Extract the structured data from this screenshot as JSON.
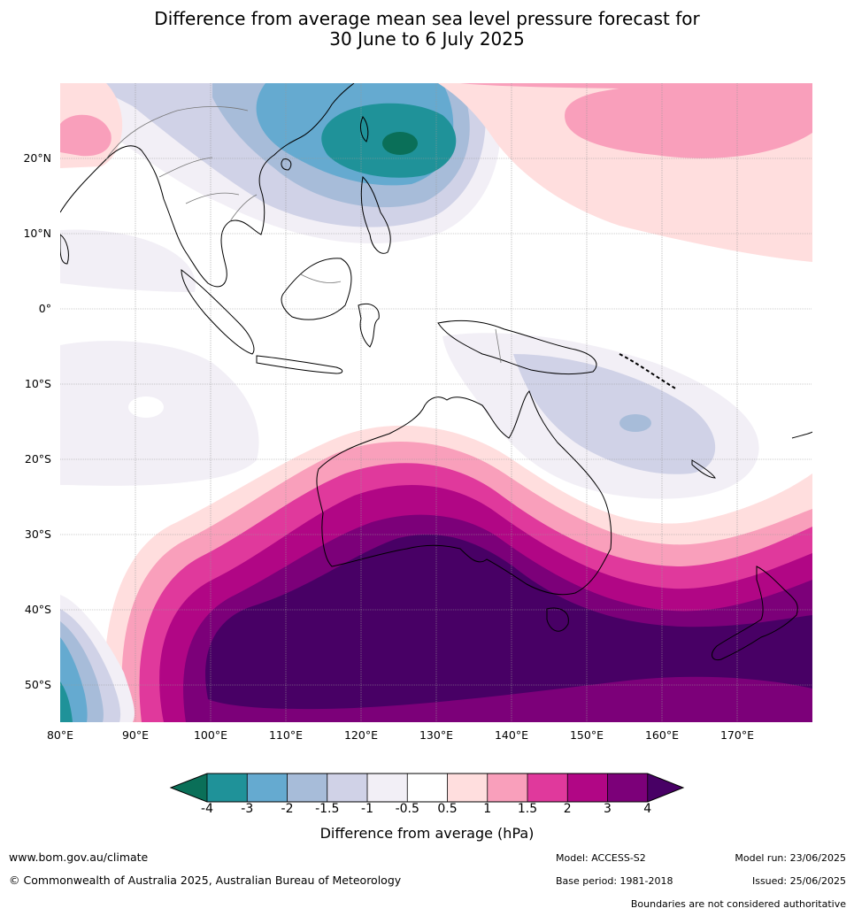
{
  "title_line1": "Difference from average mean sea level pressure forecast for",
  "title_line2": "30 June to 6 July 2025",
  "latitude_labels": [
    "20°N",
    "10°N",
    "0°",
    "10°S",
    "20°S",
    "30°S",
    "40°S",
    "50°S"
  ],
  "longitude_labels": [
    "80°E",
    "90°E",
    "100°E",
    "110°E",
    "120°E",
    "130°E",
    "140°E",
    "150°E",
    "160°E",
    "170°E"
  ],
  "colorbar": {
    "ticks": [
      "-4",
      "-3",
      "-2",
      "-1.5",
      "-1",
      "-0.5",
      "0.5",
      "1",
      "1.5",
      "2",
      "3",
      "4"
    ],
    "colors": [
      "#0a6f58",
      "#1f9299",
      "#65aad0",
      "#a7bcd9",
      "#d0d2e7",
      "#f2eff6",
      "#ffffff",
      "#ffdede",
      "#f99fbb",
      "#e0399c",
      "#b10685",
      "#7c0079",
      "#480065"
    ],
    "title": "Difference from average (hPa)"
  },
  "footer": {
    "website": "www.bom.gov.au/climate",
    "copyright": "© Commonwealth of Australia 2025, Australian Bureau of Meteorology",
    "model": "Model: ACCESS-S2",
    "base_period": "Base period: 1981-2018",
    "model_run": "Model run: 23/06/2025",
    "issued": "Issued: 25/06/2025",
    "disclaimer": "Boundaries are not considered authoritative"
  }
}
